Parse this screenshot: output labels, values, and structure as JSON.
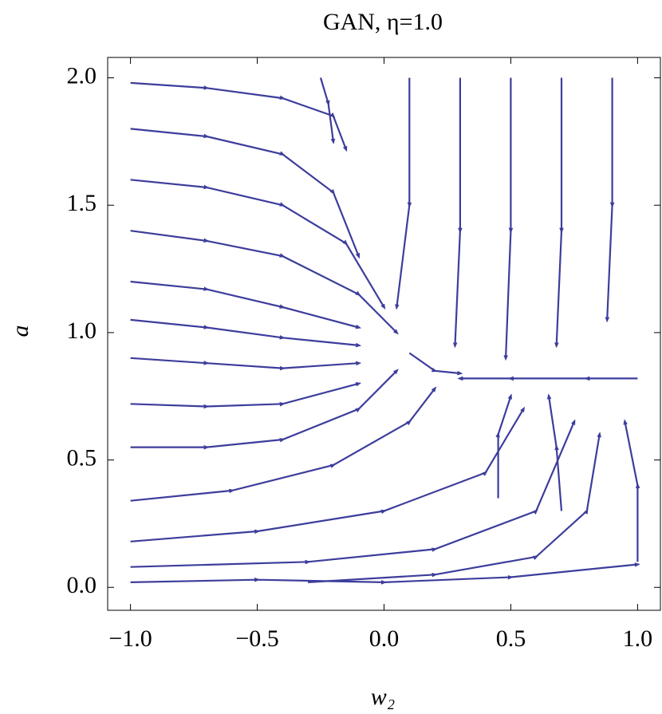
{
  "chart_data": {
    "type": "streamplot",
    "title": "GAN, η=1.0",
    "x_label": "w₂",
    "y_label": "a",
    "color": "#3d3d9c",
    "xlim": [
      -1.09,
      1.09
    ],
    "ylim": [
      -0.09,
      2.08
    ],
    "xticks": [
      {
        "value": -1,
        "label": "−1.0"
      },
      {
        "value": -0.5,
        "label": "−0.5"
      },
      {
        "value": 0,
        "label": "0.0"
      },
      {
        "value": 0.5,
        "label": "0.5"
      },
      {
        "value": 1,
        "label": "1.0"
      }
    ],
    "yticks": [
      {
        "value": 0,
        "label": "0.0"
      },
      {
        "value": 0.5,
        "label": "0.5"
      },
      {
        "value": 1,
        "label": "1.0"
      },
      {
        "value": 1.5,
        "label": "1.5"
      },
      {
        "value": 2,
        "label": "2.0"
      }
    ],
    "streamlines": [
      {
        "x": [
          -1,
          -0.7,
          -0.4,
          -0.2,
          -0.15
        ],
        "y": [
          1.98,
          1.96,
          1.92,
          1.85,
          1.72
        ]
      },
      {
        "x": [
          -1,
          -0.7,
          -0.4,
          -0.2,
          -0.1
        ],
        "y": [
          1.8,
          1.77,
          1.7,
          1.55,
          1.3
        ]
      },
      {
        "x": [
          -1,
          -0.7,
          -0.4,
          -0.15,
          0
        ],
        "y": [
          1.6,
          1.57,
          1.5,
          1.35,
          1.1
        ]
      },
      {
        "x": [
          -1,
          -0.7,
          -0.4,
          -0.1,
          0.05
        ],
        "y": [
          1.4,
          1.36,
          1.3,
          1.15,
          1.0
        ]
      },
      {
        "x": [
          -1,
          -0.7,
          -0.4,
          -0.1
        ],
        "y": [
          1.2,
          1.17,
          1.1,
          1.02
        ]
      },
      {
        "x": [
          -1,
          -0.7,
          -0.4,
          -0.1
        ],
        "y": [
          1.05,
          1.02,
          0.98,
          0.95
        ]
      },
      {
        "x": [
          -1,
          -0.7,
          -0.4,
          -0.1
        ],
        "y": [
          0.9,
          0.88,
          0.86,
          0.88
        ]
      },
      {
        "x": [
          -1,
          -0.7,
          -0.4,
          -0.1
        ],
        "y": [
          0.72,
          0.71,
          0.72,
          0.8
        ]
      },
      {
        "x": [
          -1,
          -0.7,
          -0.4,
          -0.1,
          0.05
        ],
        "y": [
          0.55,
          0.55,
          0.58,
          0.7,
          0.85
        ]
      },
      {
        "x": [
          -1,
          -0.6,
          -0.2,
          0.1,
          0.2
        ],
        "y": [
          0.34,
          0.38,
          0.48,
          0.65,
          0.78
        ]
      },
      {
        "x": [
          -1,
          -0.5,
          0,
          0.4,
          0.55
        ],
        "y": [
          0.18,
          0.22,
          0.3,
          0.45,
          0.7
        ]
      },
      {
        "x": [
          -1,
          -0.3,
          0.2,
          0.6,
          0.75
        ],
        "y": [
          0.08,
          0.1,
          0.15,
          0.3,
          0.65
        ]
      },
      {
        "x": [
          -1,
          -0.5,
          0,
          0.5,
          1
        ],
        "y": [
          0.02,
          0.03,
          0.02,
          0.04,
          0.09
        ]
      },
      {
        "x": [
          -0.3,
          0.2,
          0.6,
          0.8,
          0.85
        ],
        "y": [
          0.02,
          0.05,
          0.12,
          0.3,
          0.6
        ]
      },
      {
        "x": [
          0.1,
          0.1,
          0.05
        ],
        "y": [
          2,
          1.5,
          1.1
        ]
      },
      {
        "x": [
          0.3,
          0.3,
          0.28
        ],
        "y": [
          2,
          1.4,
          0.95
        ]
      },
      {
        "x": [
          0.5,
          0.5,
          0.48
        ],
        "y": [
          2,
          1.4,
          0.9
        ]
      },
      {
        "x": [
          0.7,
          0.7,
          0.68
        ],
        "y": [
          2,
          1.4,
          0.95
        ]
      },
      {
        "x": [
          0.9,
          0.9,
          0.88
        ],
        "y": [
          2,
          1.5,
          1.05
        ]
      },
      {
        "x": [
          1,
          0.8,
          0.5,
          0.3
        ],
        "y": [
          0.82,
          0.82,
          0.82,
          0.82
        ]
      },
      {
        "x": [
          0.1,
          0.2,
          0.3
        ],
        "y": [
          0.92,
          0.85,
          0.84
        ]
      },
      {
        "x": [
          1,
          1,
          0.95
        ],
        "y": [
          0.1,
          0.4,
          0.65
        ]
      },
      {
        "x": [
          0.7,
          0.68,
          0.65
        ],
        "y": [
          0.3,
          0.55,
          0.75
        ]
      },
      {
        "x": [
          0.45,
          0.45,
          0.5
        ],
        "y": [
          0.35,
          0.6,
          0.75
        ]
      },
      {
        "x": [
          -0.25,
          -0.22,
          -0.2
        ],
        "y": [
          2,
          1.9,
          1.75
        ]
      }
    ]
  }
}
